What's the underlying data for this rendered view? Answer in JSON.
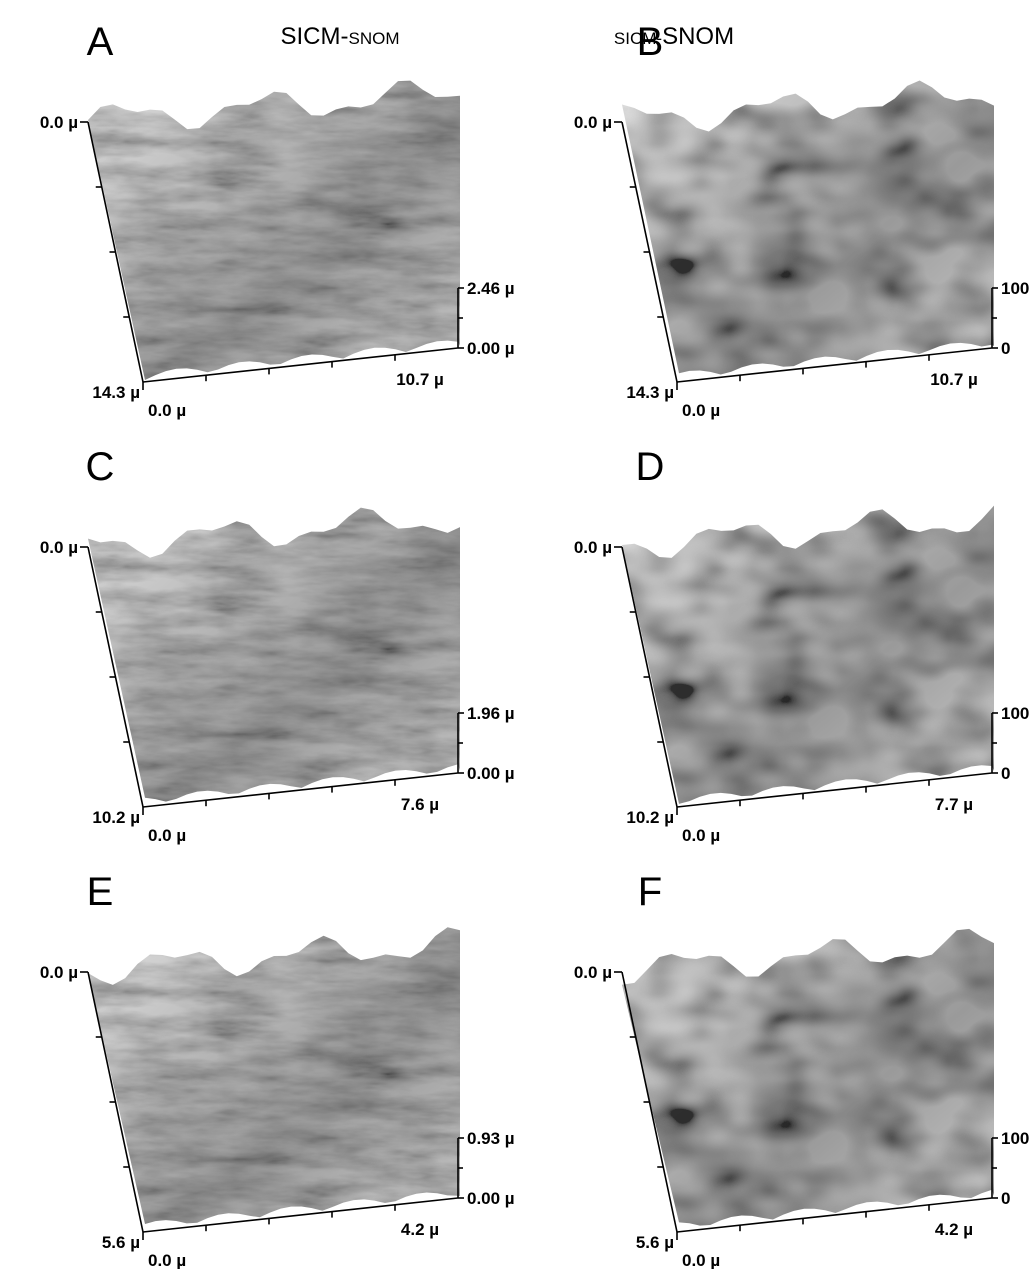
{
  "panels": [
    {
      "letter": "A",
      "title": [
        {
          "text": "SICM-",
          "small": false
        },
        {
          "text": "SNOM",
          "small": true
        }
      ],
      "labels": {
        "y_top": "0.0 µ",
        "y_bottom": "14.3 µ",
        "x_start": "0.0 µ",
        "x_end": "10.7 µ",
        "z_top": "2.46 µ",
        "z_bottom": "0.00 µ"
      }
    },
    {
      "letter": "B",
      "title": [
        {
          "text": "SICM-",
          "small": true
        },
        {
          "text": "SNOM",
          "small": false
        }
      ],
      "labels": {
        "y_top": "0.0 µ",
        "y_bottom": "14.3 µ",
        "x_start": "0.0 µ",
        "x_end": "10.7 µ",
        "z_top": "100",
        "z_bottom": "0"
      }
    },
    {
      "letter": "C",
      "labels": {
        "y_top": "0.0 µ",
        "y_bottom": "10.2 µ",
        "x_start": "0.0 µ",
        "x_end": "7.6 µ",
        "z_top": "1.96 µ",
        "z_bottom": "0.00 µ"
      }
    },
    {
      "letter": "D",
      "labels": {
        "y_top": "0.0 µ",
        "y_bottom": "10.2 µ",
        "x_start": "0.0 µ",
        "x_end": "7.7 µ",
        "z_top": "100",
        "z_bottom": "0"
      }
    },
    {
      "letter": "E",
      "labels": {
        "y_top": "0.0 µ",
        "y_bottom": "5.6 µ",
        "x_start": "0.0 µ",
        "x_end": "4.2 µ",
        "z_top": "0.93 µ",
        "z_bottom": "0.00 µ"
      }
    },
    {
      "letter": "F",
      "labels": {
        "y_top": "0.0 µ",
        "y_bottom": "5.6 µ",
        "x_start": "0.0 µ",
        "x_end": "4.2 µ",
        "z_top": "100",
        "z_bottom": "0"
      }
    }
  ]
}
